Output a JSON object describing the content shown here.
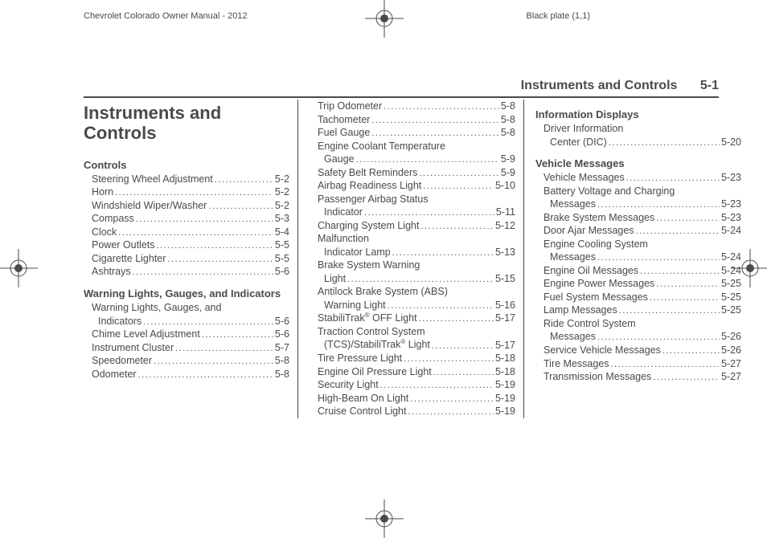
{
  "topHeader": {
    "left": "Chevrolet Colorado Owner Manual - 2012",
    "right": "Black plate (1,1)"
  },
  "pageHeader": {
    "title": "Instruments and Controls",
    "page": "5-1"
  },
  "mainTitle": "Instruments and Controls",
  "col1": {
    "sections": [
      {
        "head": "Controls",
        "items": [
          {
            "label": "Steering Wheel Adjustment",
            "page": "5-2"
          },
          {
            "label": "Horn",
            "page": "5-2"
          },
          {
            "label": "Windshield Wiper/Washer",
            "page": "5-2"
          },
          {
            "label": "Compass",
            "page": "5-3"
          },
          {
            "label": "Clock",
            "page": "5-4"
          },
          {
            "label": "Power Outlets",
            "page": "5-5"
          },
          {
            "label": "Cigarette Lighter",
            "page": "5-5"
          },
          {
            "label": "Ashtrays",
            "page": "5-6"
          }
        ]
      },
      {
        "head": "Warning Lights, Gauges, and Indicators",
        "items": [
          {
            "wrap": "Warning Lights, Gauges, and",
            "label": "Indicators",
            "page": "5-6"
          },
          {
            "label": "Chime Level Adjustment",
            "page": "5-6"
          },
          {
            "label": "Instrument Cluster",
            "page": "5-7"
          },
          {
            "label": "Speedometer",
            "page": "5-8"
          },
          {
            "label": "Odometer",
            "page": "5-8"
          }
        ]
      }
    ]
  },
  "col2": {
    "items": [
      {
        "label": "Trip Odometer",
        "page": "5-8"
      },
      {
        "label": "Tachometer",
        "page": "5-8"
      },
      {
        "label": "Fuel Gauge",
        "page": "5-8"
      },
      {
        "wrap": "Engine Coolant Temperature",
        "label": "Gauge",
        "page": "5-9"
      },
      {
        "label": "Safety Belt Reminders",
        "page": "5-9"
      },
      {
        "label": "Airbag Readiness Light",
        "page": "5-10"
      },
      {
        "wrap": "Passenger Airbag Status",
        "label": "Indicator",
        "page": "5-11"
      },
      {
        "label": "Charging System Light",
        "page": "5-12"
      },
      {
        "wrap": "Malfunction",
        "label": "Indicator Lamp",
        "page": "5-13"
      },
      {
        "wrap": "Brake System Warning",
        "label": "Light",
        "page": "5-15"
      },
      {
        "wrap": "Antilock Brake System (ABS)",
        "label": "Warning Light",
        "page": "5-16"
      },
      {
        "label": "StabiliTrak® OFF Light",
        "page": "5-17",
        "sup": "®",
        "pre": "StabiliTrak",
        "post": " OFF Light"
      },
      {
        "wrap": "Traction Control System",
        "label": "(TCS)/StabiliTrak® Light",
        "page": "5-17",
        "sup": "®",
        "pre": "(TCS)/StabiliTrak",
        "post": " Light"
      },
      {
        "label": "Tire Pressure Light",
        "page": "5-18"
      },
      {
        "label": "Engine Oil Pressure Light",
        "page": "5-18"
      },
      {
        "label": "Security Light",
        "page": "5-19"
      },
      {
        "label": "High-Beam On Light",
        "page": "5-19"
      },
      {
        "label": "Cruise Control Light",
        "page": "5-19"
      }
    ]
  },
  "col3": {
    "sections": [
      {
        "head": "Information Displays",
        "items": [
          {
            "wrap": "Driver Information",
            "label": "Center (DIC)",
            "page": "5-20"
          }
        ]
      },
      {
        "head": "Vehicle Messages",
        "items": [
          {
            "label": "Vehicle Messages",
            "page": "5-23"
          },
          {
            "wrap": "Battery Voltage and Charging",
            "label": "Messages",
            "page": "5-23"
          },
          {
            "label": "Brake System Messages",
            "page": "5-23"
          },
          {
            "label": "Door Ajar Messages",
            "page": "5-24"
          },
          {
            "wrap": "Engine Cooling System",
            "label": "Messages",
            "page": "5-24"
          },
          {
            "label": "Engine Oil Messages",
            "page": "5-24"
          },
          {
            "label": "Engine Power Messages",
            "page": "5-25"
          },
          {
            "label": "Fuel System Messages",
            "page": "5-25"
          },
          {
            "label": "Lamp Messages",
            "page": "5-25"
          },
          {
            "wrap": "Ride Control System",
            "label": "Messages",
            "page": "5-26"
          },
          {
            "label": "Service Vehicle Messages",
            "page": "5-26"
          },
          {
            "label": "Tire Messages",
            "page": "5-27"
          },
          {
            "label": "Transmission Messages",
            "page": "5-27"
          }
        ]
      }
    ]
  }
}
